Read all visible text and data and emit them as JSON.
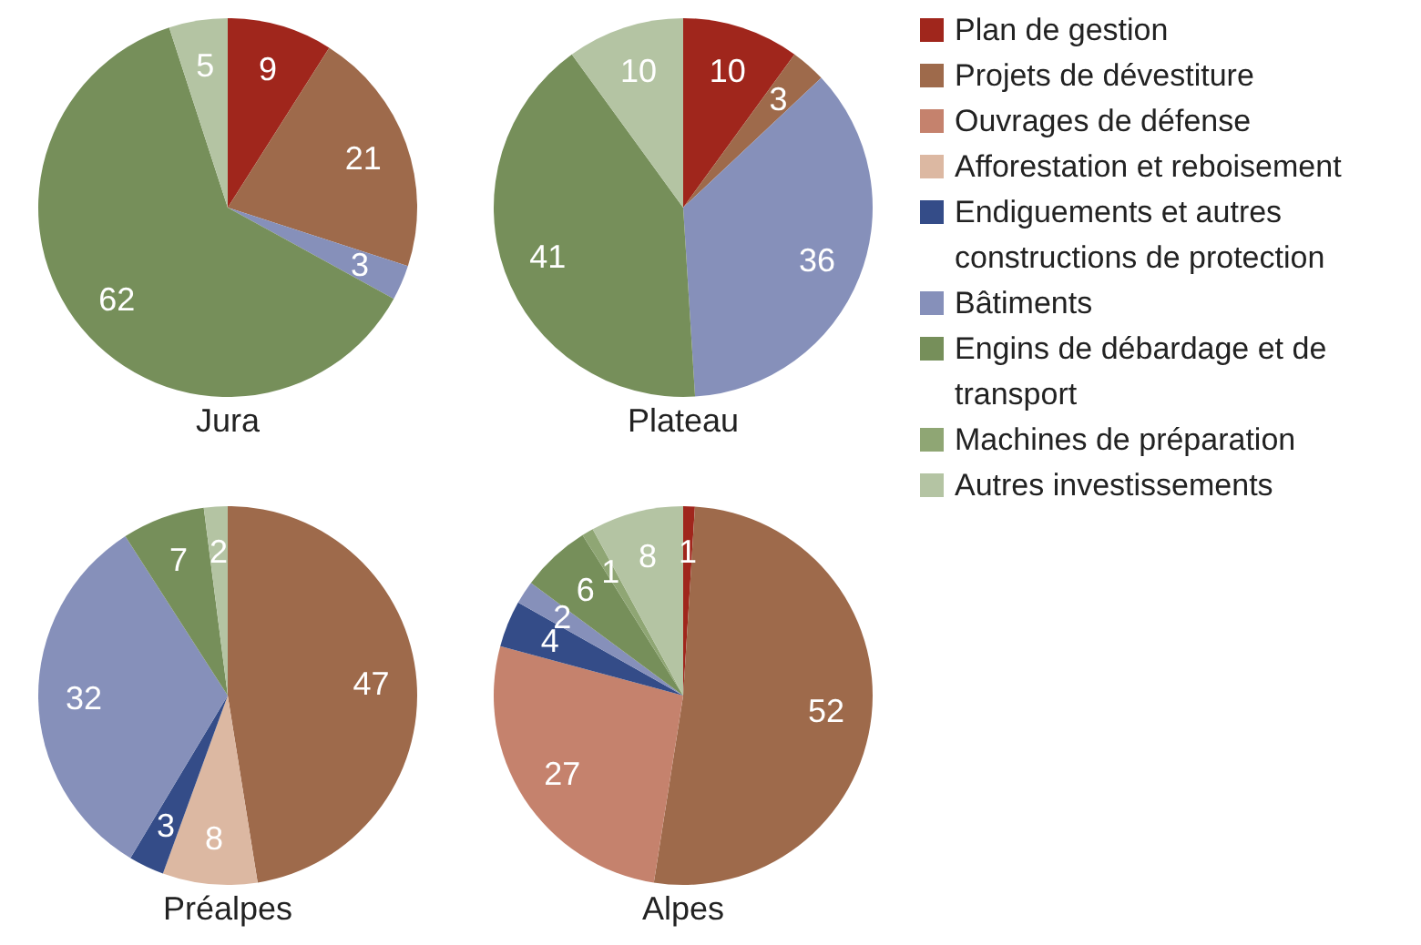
{
  "chart_data": {
    "type": "pie",
    "categories": [
      "Plan de gestion",
      "Projets de dévestiture",
      "Ouvrages de défense",
      "Afforestation et reboisement",
      "Endiguements et autres constructions de protection",
      "Bâtiments",
      "Engins de débardage et de transport",
      "Machines de préparation",
      "Autres investissements"
    ],
    "colors": [
      "#a0261c",
      "#9e6a4b",
      "#c5826d",
      "#dcb8a2",
      "#344c88",
      "#8690ba",
      "#768f5a",
      "#8fa674",
      "#b4c4a3"
    ],
    "series": [
      {
        "name": "Jura",
        "values": [
          9,
          21,
          0,
          0,
          0,
          3,
          62,
          0,
          5
        ]
      },
      {
        "name": "Plateau",
        "values": [
          10,
          3,
          0,
          0,
          0,
          36,
          41,
          0,
          10
        ]
      },
      {
        "name": "Préalpes",
        "values": [
          0,
          47,
          0,
          8,
          3,
          32,
          7,
          0,
          2
        ]
      },
      {
        "name": "Alpes",
        "values": [
          1,
          52,
          27,
          0,
          4,
          2,
          6,
          1,
          8
        ]
      }
    ],
    "data_labels": true,
    "legend": "right"
  }
}
